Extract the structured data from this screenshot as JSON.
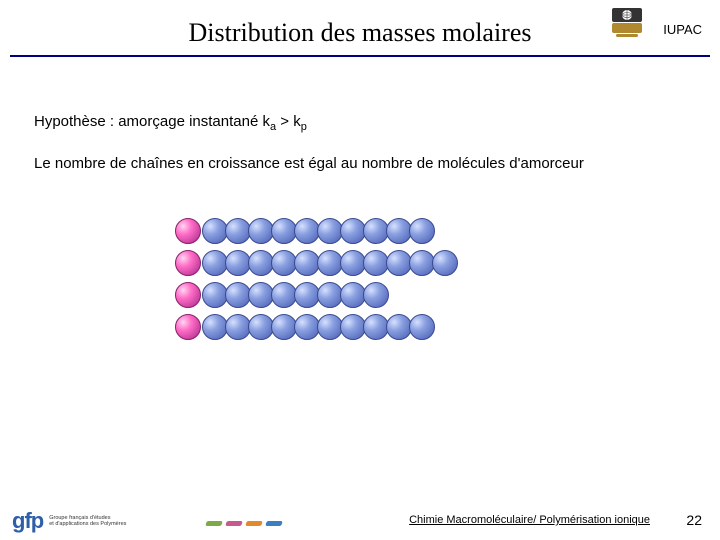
{
  "title": "Distribution des masses molaires",
  "iupac_label": "IUPAC",
  "hypothesis": {
    "prefix": "Hypothèse : amorçage instantané  k",
    "sub1": "a",
    "mid": " > k",
    "sub2": "p"
  },
  "body_text": "Le nombre de chaînes en croissance est égal au nombre de molécules d'amorceur",
  "chains": {
    "initiator_color": "#ff6ec7",
    "monomer_color": "#8aa0e0",
    "rows": [
      10,
      11,
      8,
      10
    ]
  },
  "title_rule_color": "#000080",
  "gfp": {
    "text": "gfp",
    "line1": "Groupe français d'études",
    "line2": "et d'applications des Polymères"
  },
  "dash_colors": [
    "#7fa849",
    "#c65a8e",
    "#e28a2b",
    "#3a7fc2"
  ],
  "footer_text": "Chimie Macromoléculaire/ Polymérisation ionique",
  "page_number": "22",
  "iupac_logo_colors": {
    "top": "#333333",
    "bottom": "#b08830"
  }
}
